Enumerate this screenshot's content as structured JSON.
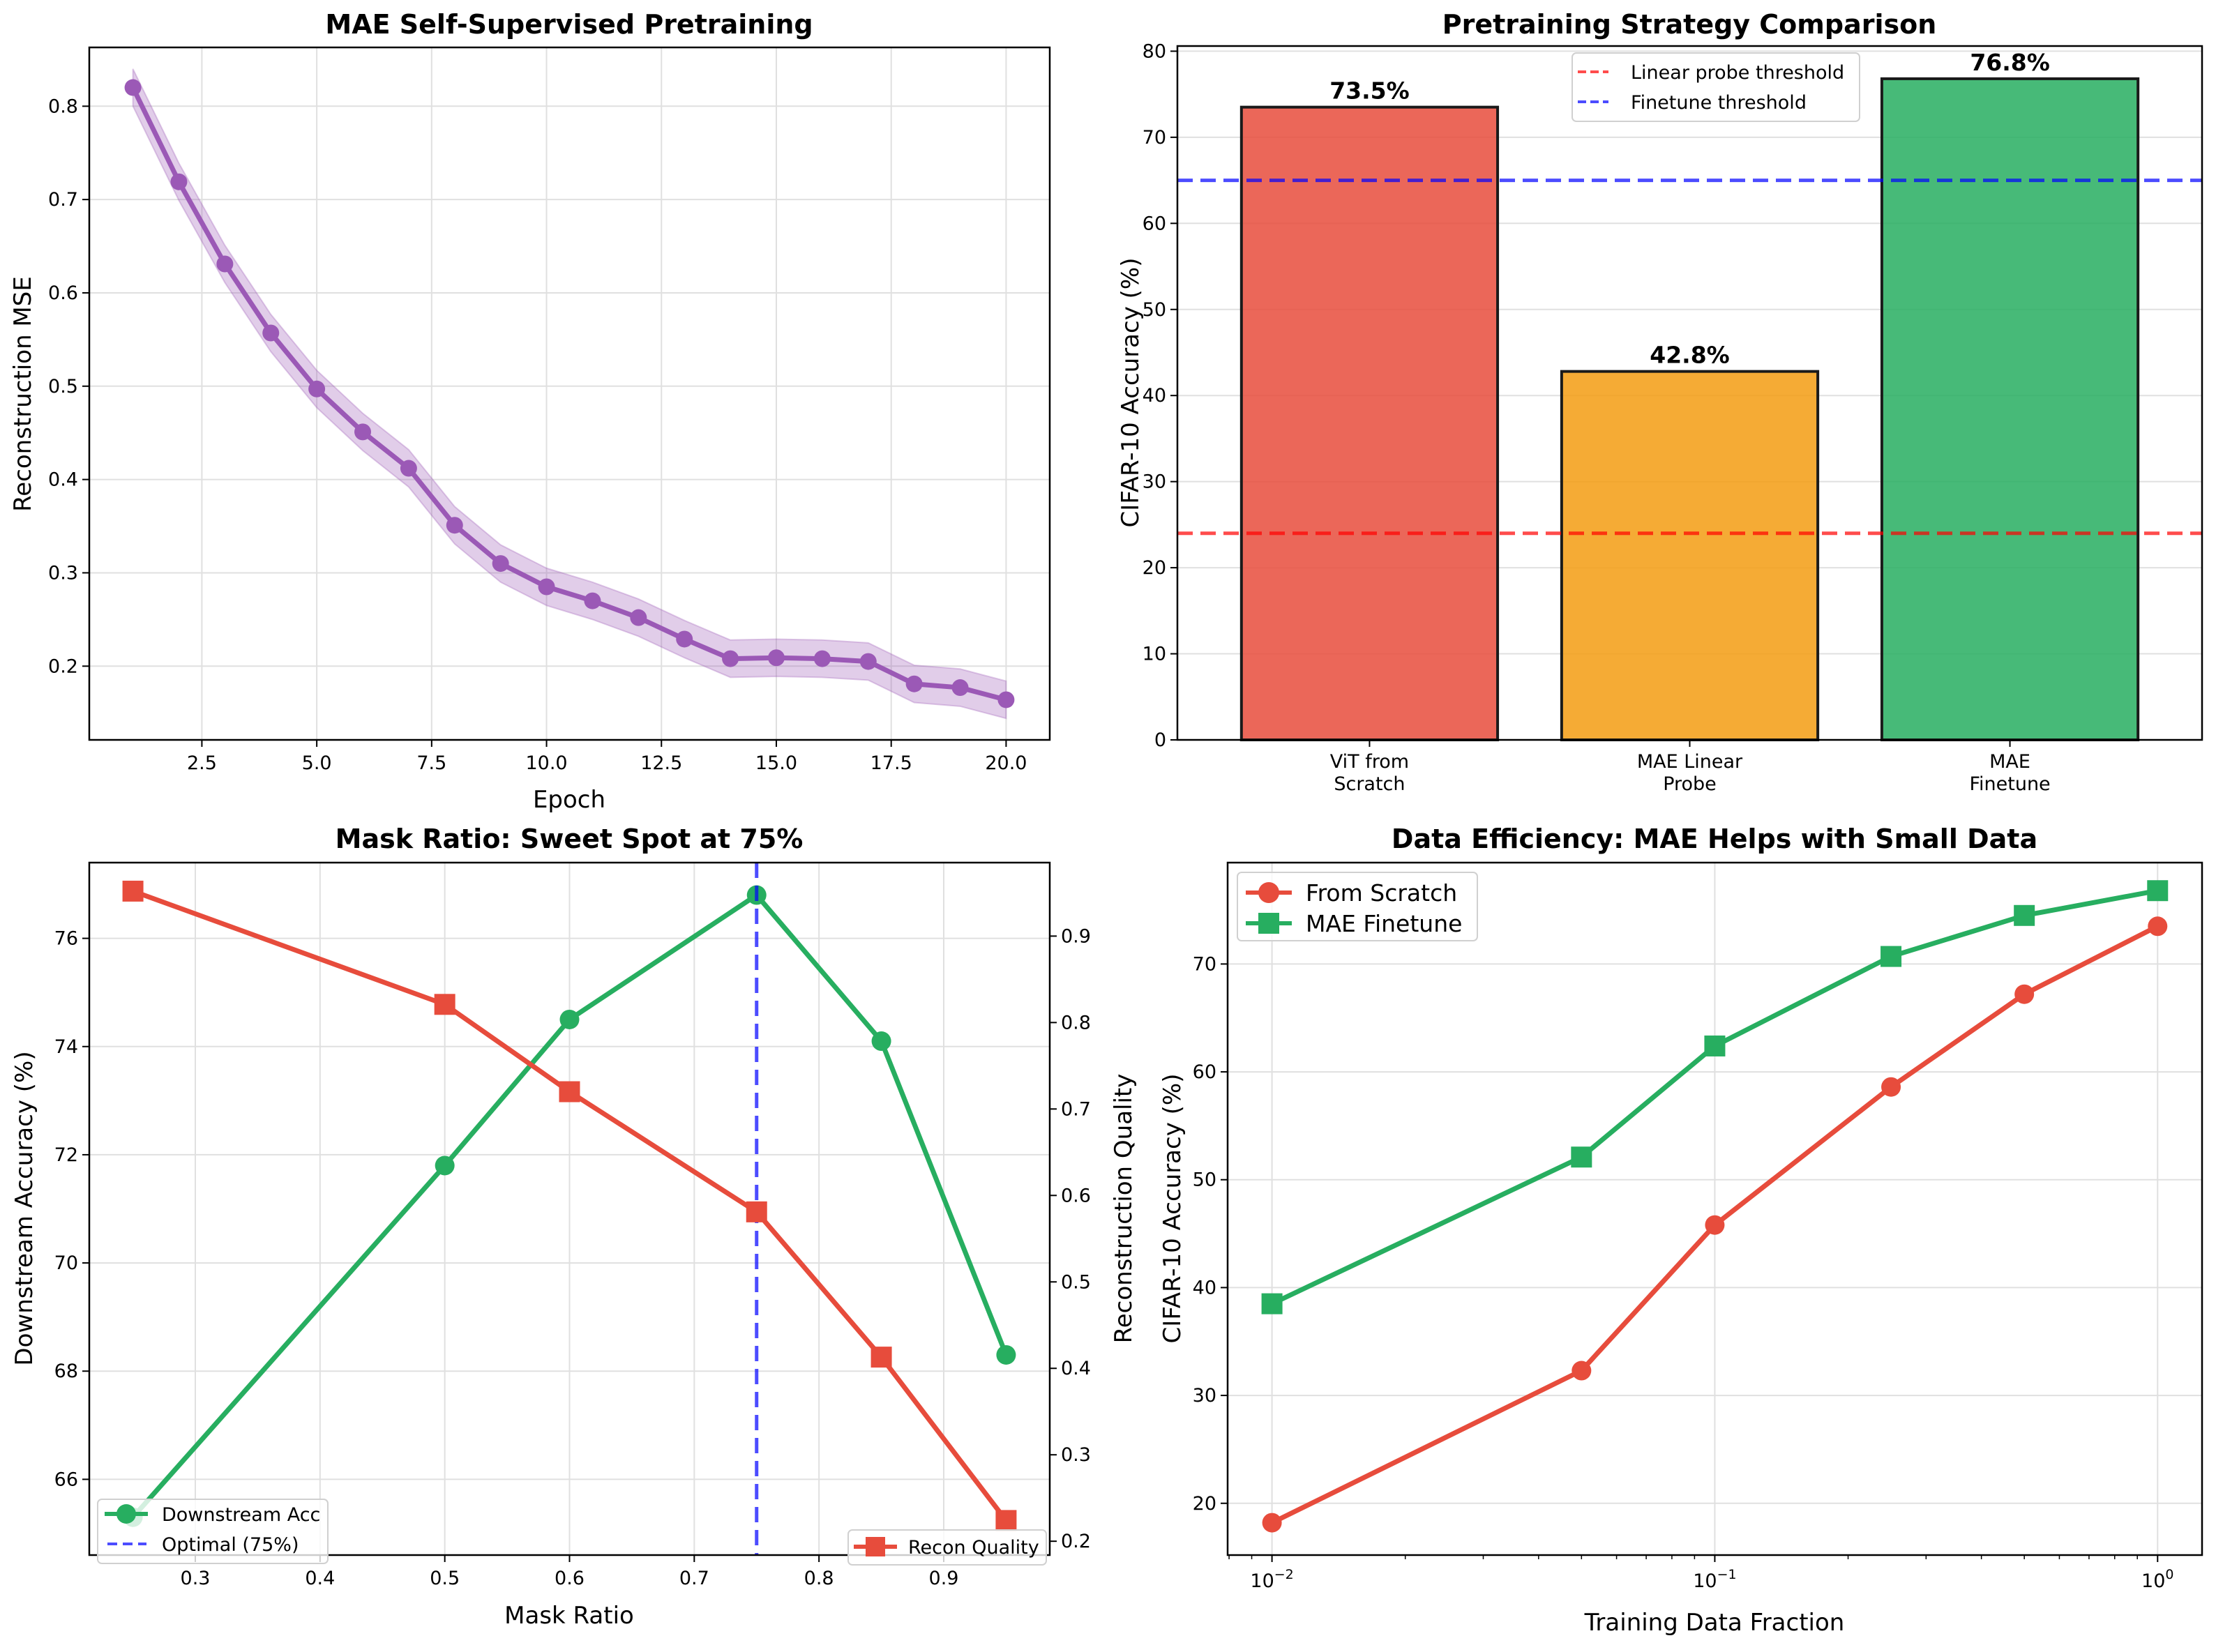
{
  "figure": {
    "background": "#ffffff"
  },
  "chart_data": [
    {
      "id": "pretraining-loss",
      "type": "line",
      "title": "MAE Self-Supervised Pretraining",
      "xlabel": "Epoch",
      "ylabel": "Reconstruction MSE",
      "xlim": [
        0.05,
        20.95
      ],
      "ylim": [
        0.121,
        0.863
      ],
      "xticks": [
        2.5,
        5.0,
        7.5,
        10.0,
        12.5,
        15.0,
        17.5,
        20.0
      ],
      "xtick_labels": [
        "2.5",
        "5.0",
        "7.5",
        "10.0",
        "12.5",
        "15.0",
        "17.5",
        "20.0"
      ],
      "yticks": [
        0.2,
        0.3,
        0.4,
        0.5,
        0.6,
        0.7,
        0.8
      ],
      "ytick_labels": [
        "0.2",
        "0.3",
        "0.4",
        "0.5",
        "0.6",
        "0.7",
        "0.8"
      ],
      "grid": true,
      "x": [
        1,
        2,
        3,
        4,
        5,
        6,
        7,
        8,
        9,
        10,
        11,
        12,
        13,
        14,
        15,
        16,
        17,
        18,
        19,
        20
      ],
      "series": [
        {
          "name": "Reconstruction MSE",
          "color": "#9b59b6",
          "marker": "circle",
          "values": [
            0.82,
            0.719,
            0.631,
            0.557,
            0.497,
            0.451,
            0.412,
            0.351,
            0.31,
            0.285,
            0.27,
            0.252,
            0.229,
            0.208,
            0.209,
            0.208,
            0.205,
            0.181,
            0.177,
            0.164
          ],
          "band": 0.02
        }
      ]
    },
    {
      "id": "strategy-comparison",
      "type": "bar",
      "title": "Pretraining Strategy Comparison",
      "xlabel": "",
      "ylabel": "CIFAR-10 Accuracy (%)",
      "ylim": [
        0,
        80.6
      ],
      "yticks": [
        0,
        10,
        20,
        30,
        40,
        50,
        60,
        70,
        80
      ],
      "ytick_labels": [
        "0",
        "10",
        "20",
        "30",
        "40",
        "50",
        "60",
        "70",
        "80"
      ],
      "grid": true,
      "categories": [
        [
          "ViT from",
          "Scratch"
        ],
        [
          "MAE Linear",
          "Probe"
        ],
        [
          "MAE",
          "Finetune"
        ]
      ],
      "values": [
        73.5,
        42.8,
        76.8
      ],
      "value_labels": [
        "73.5%",
        "42.8%",
        "76.8%"
      ],
      "colors": [
        "#e74c3c",
        "#f39c12",
        "#27ae60"
      ],
      "thresholds": [
        {
          "name": "Linear probe threshold",
          "value": 24,
          "color": "#ff0000"
        },
        {
          "name": "Finetune threshold",
          "value": 65,
          "color": "#0000ff"
        }
      ],
      "legend_position": "top-center"
    },
    {
      "id": "mask-ratio",
      "type": "line",
      "title": "Mask Ratio: Sweet Spot at 75%",
      "xlabel": "Mask Ratio",
      "ylabel": "Downstream Accuracy (%)",
      "ylabel_right": "Reconstruction Quality",
      "xlim": [
        0.215,
        0.985
      ],
      "ylim": [
        64.6,
        77.4
      ],
      "ylim_right": [
        0.184,
        0.985
      ],
      "xticks": [
        0.3,
        0.4,
        0.5,
        0.6,
        0.7,
        0.8,
        0.9
      ],
      "xtick_labels": [
        "0.3",
        "0.4",
        "0.5",
        "0.6",
        "0.7",
        "0.8",
        "0.9"
      ],
      "yticks": [
        66,
        68,
        70,
        72,
        74,
        76
      ],
      "ytick_labels": [
        "66",
        "68",
        "70",
        "72",
        "74",
        "76"
      ],
      "yticks_right": [
        0.2,
        0.3,
        0.4,
        0.5,
        0.6,
        0.7,
        0.8,
        0.9
      ],
      "ytick_labels_right": [
        "0.2",
        "0.3",
        "0.4",
        "0.5",
        "0.6",
        "0.7",
        "0.8",
        "0.9"
      ],
      "grid": true,
      "x": [
        0.25,
        0.5,
        0.6,
        0.75,
        0.85,
        0.95
      ],
      "series": [
        {
          "name": "Downstream Acc",
          "axis": "left",
          "color": "#27ae60",
          "marker": "circle",
          "values": [
            65.3,
            71.8,
            74.5,
            76.8,
            74.1,
            68.3
          ]
        },
        {
          "name": "Recon Quality",
          "axis": "right",
          "color": "#e74c3c",
          "marker": "square",
          "values": [
            0.952,
            0.821,
            0.72,
            0.581,
            0.413,
            0.224
          ]
        }
      ],
      "vline": {
        "name": "Optimal (75%)",
        "x": 0.75,
        "color": "#0000ff"
      },
      "legend_left_position": "lower-left",
      "legend_right_position": "lower-right",
      "ylabel_left_color": "#27ae60",
      "ylabel_right_color": "#e74c3c"
    },
    {
      "id": "data-efficiency",
      "type": "line",
      "title": "Data Efficiency: MAE Helps with Small Data",
      "xlabel": "Training Data Fraction",
      "ylabel": "CIFAR-10 Accuracy (%)",
      "xscale": "log",
      "xlim": [
        0.00794,
        1.26
      ],
      "ylim": [
        15.2,
        79.4
      ],
      "xticks": [
        0.01,
        0.1,
        1
      ],
      "xtick_labels": [
        [
          "10",
          "−2"
        ],
        [
          "10",
          "−1"
        ],
        [
          "10",
          "0"
        ]
      ],
      "yticks": [
        20,
        30,
        40,
        50,
        60,
        70
      ],
      "ytick_labels": [
        "20",
        "30",
        "40",
        "50",
        "60",
        "70"
      ],
      "grid": true,
      "x": [
        0.01,
        0.05,
        0.1,
        0.25,
        0.5,
        1.0
      ],
      "series": [
        {
          "name": "From Scratch",
          "color": "#e74c3c",
          "marker": "circle",
          "values": [
            18.2,
            32.3,
            45.8,
            58.6,
            67.2,
            73.5
          ]
        },
        {
          "name": "MAE Finetune",
          "color": "#27ae60",
          "marker": "square",
          "values": [
            38.5,
            52.1,
            62.4,
            70.7,
            74.5,
            76.8
          ]
        }
      ],
      "legend_position": "upper-left"
    }
  ]
}
